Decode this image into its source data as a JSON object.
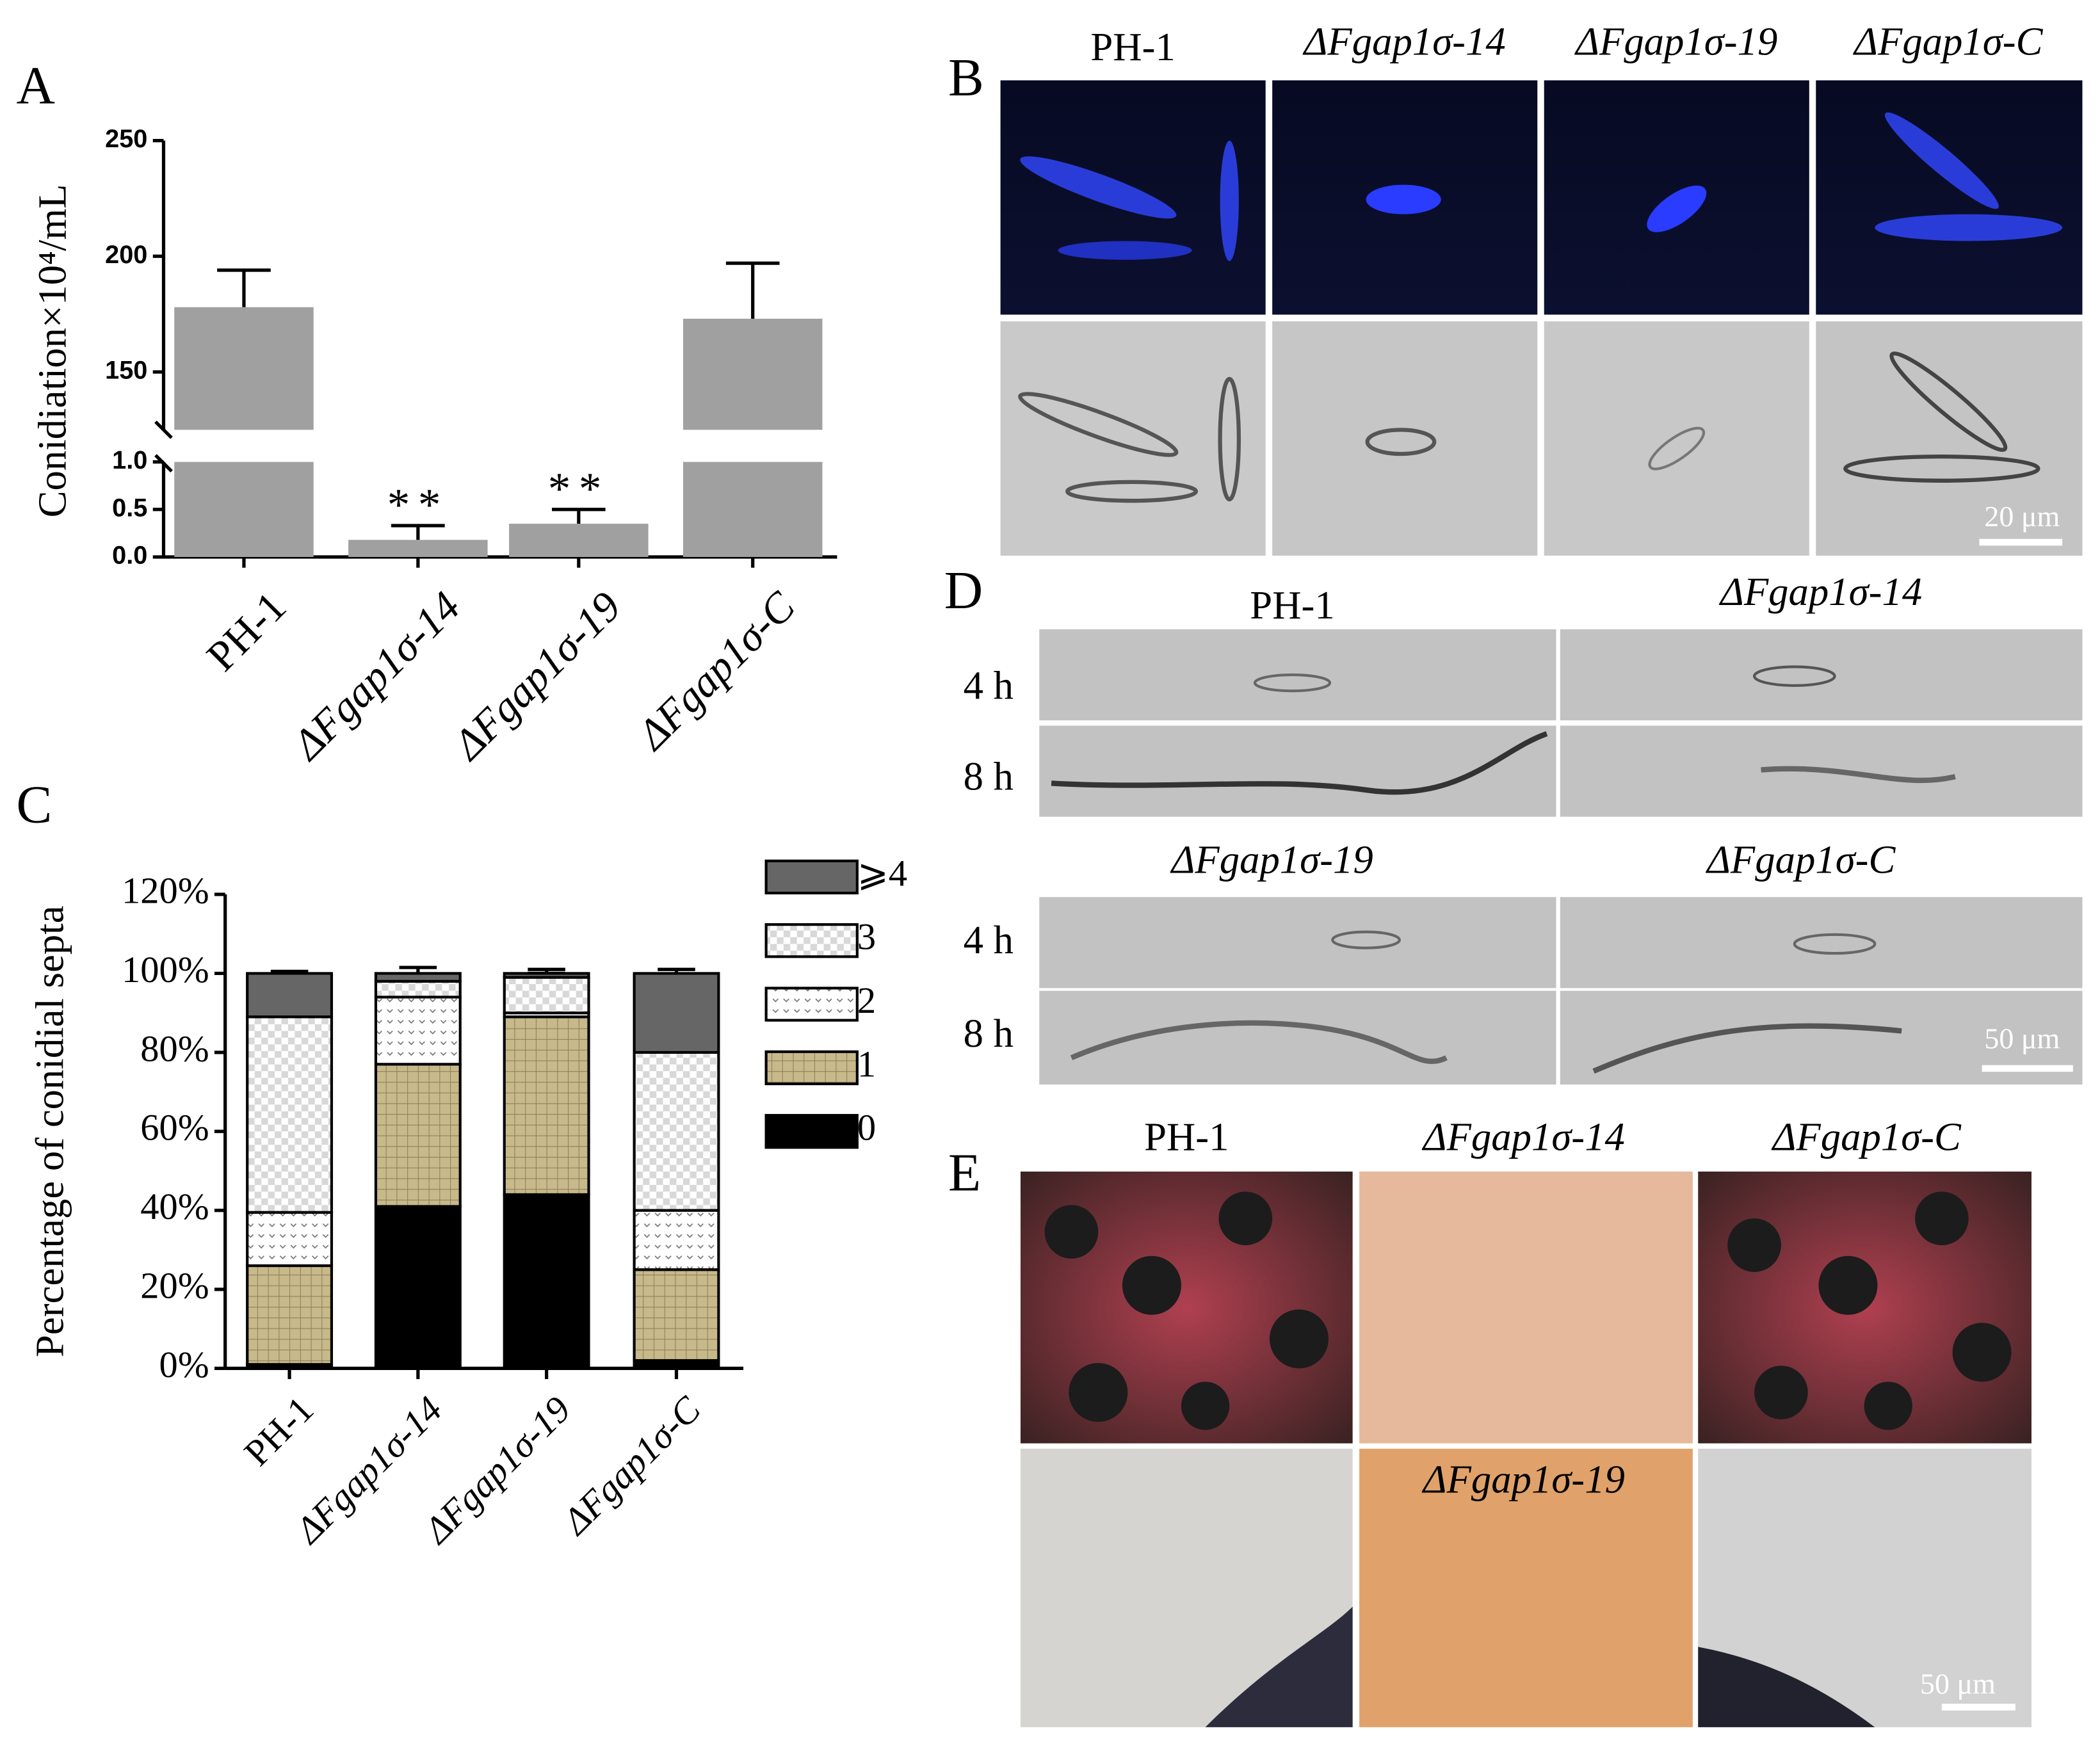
{
  "chart_data": [
    {
      "type": "broken_bar",
      "panel_label": "A",
      "y_label": "Conidiation×10⁴/mL",
      "categories": [
        "PH-1",
        "ΔFgap1σ-14",
        "ΔFgap1σ-19",
        "ΔFgap1σ-C"
      ],
      "values": [
        178,
        0.18,
        0.35,
        173
      ],
      "errors": [
        16,
        0.15,
        0.15,
        24
      ],
      "color": "#a0a0a0",
      "significance": [
        null,
        "**",
        "**",
        null
      ],
      "axis_segments": [
        {
          "ylim": [
            0,
            1
          ],
          "yticks": [
            {
              "value": 0,
              "label": "0.0"
            },
            {
              "value": 0.5,
              "label": "0.5"
            },
            {
              "value": 1,
              "label": "1.0"
            }
          ]
        },
        {
          "ylim": [
            125,
            250
          ],
          "yticks": [
            150,
            200,
            250
          ]
        }
      ]
    },
    {
      "type": "stacked_bar",
      "panel_label": "C",
      "y_label": "Percentage of conidial septa",
      "categories": [
        "PH-1",
        "ΔFgap1σ-14",
        "ΔFgap1σ-19",
        "ΔFgap1σ-C"
      ],
      "ylim": [
        0,
        120
      ],
      "yticks": [
        {
          "value": 0,
          "label": "0%"
        },
        {
          "value": 20,
          "label": "20%"
        },
        {
          "value": 40,
          "label": "40%"
        },
        {
          "value": 60,
          "label": "60%"
        },
        {
          "value": 80,
          "label": "80%"
        },
        {
          "value": 100,
          "label": "100%"
        },
        {
          "value": 120,
          "label": "120%"
        }
      ],
      "series": [
        {
          "name": "0",
          "color": "#000000",
          "pattern": null,
          "values": [
            1,
            41,
            44,
            2
          ],
          "errors": [
            0.5,
            2.5,
            2.5,
            1
          ]
        },
        {
          "name": "1",
          "color": "#c8b98a",
          "pattern": "grid",
          "values": [
            25,
            36,
            45,
            23
          ],
          "errors": [
            1,
            2.5,
            1.5,
            1
          ]
        },
        {
          "name": "2",
          "color": "#ffffff",
          "pattern": "dots",
          "values": [
            13.5,
            17,
            1,
            15
          ],
          "errors": [
            1.5,
            2,
            1.5,
            1.5
          ]
        },
        {
          "name": "3",
          "color": "#ffffff",
          "pattern": "checker",
          "values": [
            49.5,
            4,
            9,
            40
          ],
          "errors": [
            1.5,
            1.5,
            1,
            1.5
          ]
        },
        {
          "name": "⩾4",
          "color": "#666666",
          "pattern": null,
          "values": [
            11,
            2,
            1,
            20
          ],
          "errors": [
            0.5,
            1.5,
            1,
            1
          ]
        }
      ]
    }
  ],
  "panel_b": {
    "label": "B",
    "columns": [
      "PH-1",
      "ΔFgap1σ-14",
      "ΔFgap1σ-19",
      "ΔFgap1σ-C"
    ],
    "scale_bar": "20 μm"
  },
  "panel_d": {
    "label": "D",
    "titles": [
      "PH-1",
      "ΔFgap1σ-14",
      "ΔFgap1σ-19",
      "ΔFgap1σ-C"
    ],
    "row_labels": [
      [
        "4 h",
        "8 h"
      ],
      [
        "4 h",
        "8 h"
      ]
    ],
    "scale_bar": "50 μm"
  },
  "panel_e": {
    "label": "E",
    "columns": [
      "PH-1",
      "ΔFgap1σ-14",
      "ΔFgap1σ-C"
    ],
    "inset_label": "ΔFgap1σ-19",
    "scale_bar": "50 μm"
  }
}
